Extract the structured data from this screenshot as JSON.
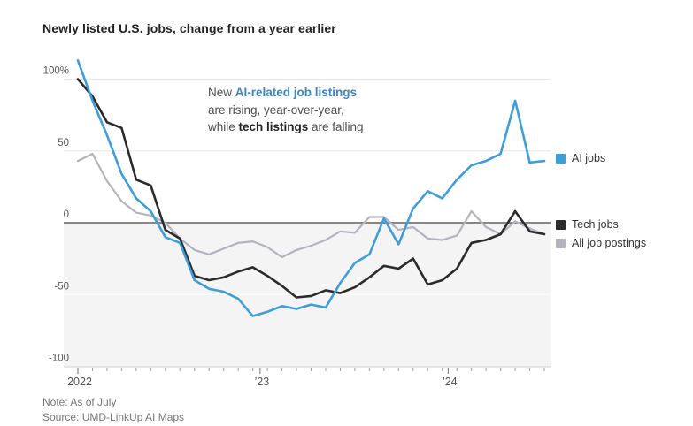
{
  "title": "Newly listed U.S. jobs, change from a year earlier",
  "annotation": {
    "l1a": "New ",
    "l1b": "AI-related job listings",
    "l2": "are rising, year-over-year,",
    "l3a": "while ",
    "l3b": "tech listings",
    "l3c": " are falling"
  },
  "legend": [
    {
      "label": "AI jobs",
      "color": "#3f9ed8"
    },
    {
      "label": "Tech jobs",
      "color": "#2b2b2b"
    },
    {
      "label": "All job postings",
      "color": "#b4b3bf"
    }
  ],
  "note": "Note: As of July",
  "source": "Source: UMD-LinkUp AI Maps",
  "colors": {
    "accent_blue_line": "#3f9ed8",
    "annotation_blue_text": "#3e86c2",
    "zero_line": "#878787",
    "gridline": "#e8e8e8",
    "below_zero_band": "#f4f4f4",
    "axis_line": "#cfcfcf",
    "tick": "#a0a0a0",
    "axis_label": "#555555"
  },
  "chart_data": {
    "type": "line",
    "x_axis": {
      "start": "2022-01",
      "end": "2024-07",
      "frequency": "approx. 4-week periods",
      "year_ticks": [
        {
          "label": "2022",
          "index": 0
        },
        {
          "label": "’23",
          "index": 12.5
        },
        {
          "label": "’24",
          "index": 25.4
        }
      ]
    },
    "y_axis": {
      "unit": "percent change from a year earlier",
      "tick_values": [
        100,
        50,
        0,
        -50,
        -100
      ],
      "tick_labels": [
        "100%",
        "50",
        "0",
        "-50",
        "-100"
      ],
      "range": [
        -100,
        115
      ],
      "shaded_below_zero": true
    },
    "series": [
      {
        "name": "AI jobs",
        "color": "#3f9ed8",
        "values": [
          113,
          85,
          61,
          34,
          17,
          8,
          -10,
          -14,
          -40,
          -46,
          -48,
          -53,
          -65,
          -62,
          -58,
          -60,
          -57,
          -59,
          -42,
          -28,
          -22,
          3,
          -15,
          10,
          22,
          17,
          30,
          40,
          43,
          48,
          85,
          42,
          43
        ]
      },
      {
        "name": "Tech jobs",
        "color": "#2b2b2b",
        "values": [
          100,
          88,
          70,
          66,
          30,
          26,
          -5,
          -11,
          -37,
          -40,
          -38,
          -34,
          -31,
          -37,
          -44,
          -52,
          -51,
          -47,
          -49,
          -45,
          -38,
          -30,
          -32,
          -25,
          -43,
          -40,
          -32,
          -14,
          -12,
          -8,
          8,
          -6,
          -8
        ]
      },
      {
        "name": "All job postings",
        "color": "#b4b3bf",
        "values": [
          43,
          48,
          29,
          15,
          7,
          5,
          0,
          -11,
          -19,
          -22,
          -18,
          -14,
          -13,
          -17,
          -24,
          -19,
          -16,
          -12,
          -6,
          -7,
          4,
          4,
          -5,
          -3,
          -11,
          -12,
          -9,
          8,
          -3,
          -8,
          1,
          -4,
          -8
        ]
      }
    ]
  }
}
